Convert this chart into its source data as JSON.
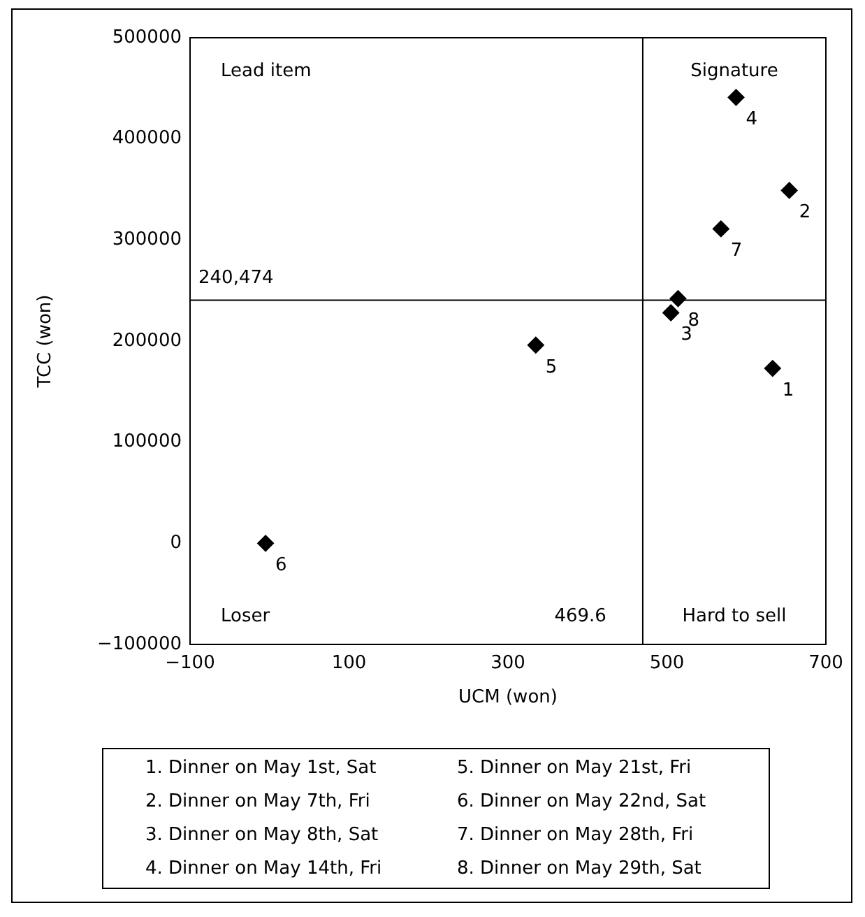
{
  "chart_data": {
    "type": "scatter",
    "xlabel": "UCM (won)",
    "ylabel": "TCC (won)",
    "x": [
      633,
      654,
      505,
      587,
      335,
      -5,
      568,
      514
    ],
    "values": [
      173000,
      349000,
      228000,
      441000,
      196000,
      0,
      311000,
      242000
    ],
    "color": "#000000",
    "marker": "diamond",
    "xlim": [
      -100,
      700
    ],
    "xticks": [
      -100,
      100,
      300,
      500,
      700
    ],
    "ylim": [
      -100000,
      500000
    ],
    "yticks": [
      -100000,
      0,
      100000,
      200000,
      300000,
      400000,
      500000
    ],
    "grid": false,
    "ref_lines": [
      {
        "axis": "y",
        "value": 240474,
        "label": "240,474",
        "color": "#000000"
      },
      {
        "axis": "x",
        "value": 469.6,
        "label": "469.6",
        "color": "#000000"
      }
    ],
    "annotations": [
      {
        "text": "1",
        "x": 633,
        "y": 173000
      },
      {
        "text": "2",
        "x": 654,
        "y": 349000
      },
      {
        "text": "3",
        "x": 505,
        "y": 228000
      },
      {
        "text": "4",
        "x": 587,
        "y": 441000
      },
      {
        "text": "5",
        "x": 335,
        "y": 196000
      },
      {
        "text": "6",
        "x": -5,
        "y": 0
      },
      {
        "text": "7",
        "x": 568,
        "y": 311000
      },
      {
        "text": "8",
        "x": 514,
        "y": 242000
      },
      "Lead item",
      "Signature",
      "Loser",
      "Hard to sell",
      "1. Dinner on May 1st, Sat",
      "2. Dinner on May 7th, Fri",
      "3. Dinner on May 8th, Sat",
      "4. Dinner on May 14th, Fri",
      "5. Dinner on May 21st, Fri",
      "6. Dinner on May 22nd, Sat",
      "7. Dinner on May 28th, Fri",
      "8. Dinner on May 29th, Sat"
    ]
  }
}
